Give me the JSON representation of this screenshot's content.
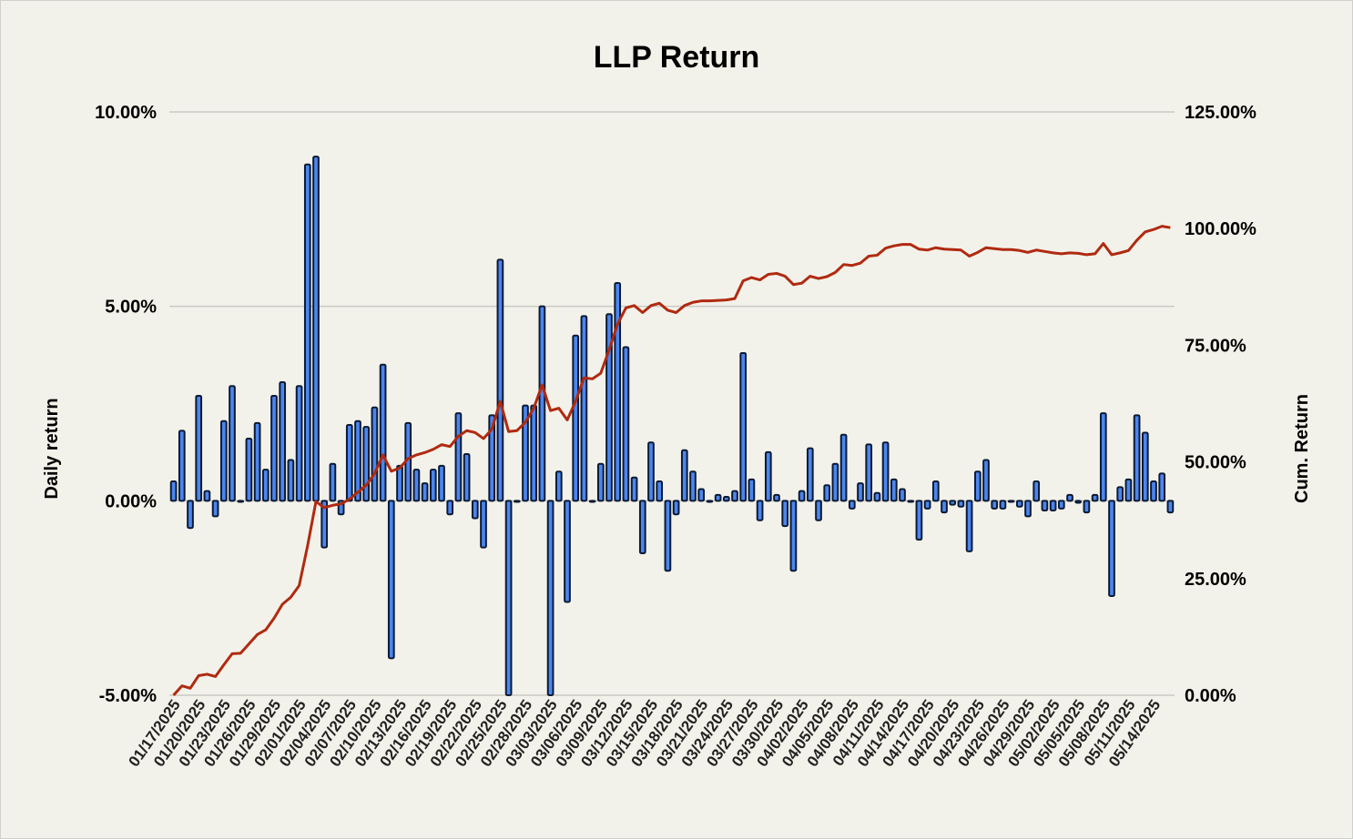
{
  "chart_data": {
    "type": "bar+line",
    "title": "LLP Return",
    "ylabel": "Daily return",
    "y2label": "Cum. Return",
    "ylim": [
      -5,
      10
    ],
    "y2lim": [
      0,
      125
    ],
    "y_ticks": [
      {
        "value": 10,
        "label": "10.00%"
      },
      {
        "value": 5,
        "label": "5.00%"
      },
      {
        "value": 0,
        "label": "0.00%"
      },
      {
        "value": -5,
        "label": "-5.00%"
      }
    ],
    "y2_ticks": [
      {
        "value": 125,
        "label": "125.00%"
      },
      {
        "value": 100,
        "label": "100.00%"
      },
      {
        "value": 75,
        "label": "75.00%"
      },
      {
        "value": 50,
        "label": "50.00%"
      },
      {
        "value": 25,
        "label": "25.00%"
      },
      {
        "value": 0,
        "label": "0.00%"
      }
    ],
    "grid": true,
    "x_tick_labels": [
      "01/17/2025",
      "01/20/2025",
      "01/23/2025",
      "01/26/2025",
      "01/29/2025",
      "02/01/2025",
      "02/04/2025",
      "02/07/2025",
      "02/10/2025",
      "02/13/2025",
      "02/16/2025",
      "02/19/2025",
      "02/22/2025",
      "02/25/2025",
      "02/28/2025",
      "03/03/2025",
      "03/06/2025",
      "03/09/2025",
      "03/12/2025",
      "03/15/2025",
      "03/18/2025",
      "03/21/2025",
      "03/24/2025",
      "03/27/2025",
      "03/30/2025",
      "04/02/2025",
      "04/05/2025",
      "04/08/2025",
      "04/11/2025",
      "04/14/2025",
      "04/17/2025",
      "04/20/2025",
      "04/23/2025",
      "04/26/2025",
      "04/29/2025",
      "05/02/2025",
      "05/05/2025",
      "05/08/2025",
      "05/11/2025",
      "05/14/2025"
    ],
    "start_date": "01/17/2025",
    "series": [
      {
        "name": "Daily return",
        "kind": "bar",
        "axis": "left",
        "values": [
          0.5,
          1.8,
          -0.7,
          2.7,
          0.25,
          -0.4,
          2.05,
          2.95,
          0,
          1.6,
          2.0,
          0.8,
          2.7,
          3.05,
          1.05,
          2.95,
          8.65,
          8.85,
          -1.2,
          0.95,
          -0.35,
          1.95,
          2.05,
          1.9,
          2.4,
          3.5,
          -4.05,
          0.9,
          2.0,
          0.8,
          0.45,
          0.8,
          0.9,
          -0.35,
          2.25,
          1.2,
          -0.45,
          -1.2,
          2.2,
          6.2,
          -5.2,
          0,
          2.45,
          2.45,
          5.0,
          -5.2,
          0.75,
          -2.6,
          4.25,
          4.75,
          0,
          0.95,
          4.8,
          5.6,
          3.95,
          0.6,
          -1.35,
          1.5,
          0.5,
          -1.8,
          -0.35,
          1.3,
          0.75,
          0.3,
          0,
          0.15,
          0.1,
          0.25,
          3.8,
          0.55,
          -0.5,
          1.25,
          0.15,
          -0.65,
          -1.8,
          0.25,
          1.35,
          -0.5,
          0.4,
          0.95,
          1.7,
          -0.2,
          0.45,
          1.45,
          0.2,
          1.5,
          0.55,
          0.3,
          0,
          -1.0,
          -0.2,
          0.5,
          -0.3,
          -0.1,
          -0.15,
          -1.3,
          0.75,
          1.05,
          -0.2,
          -0.2,
          0,
          -0.15,
          -0.4,
          0.5,
          -0.25,
          -0.25,
          -0.2,
          0.15,
          -0.05,
          -0.3,
          0.15,
          2.25,
          -2.45,
          0.35,
          0.55,
          2.2,
          1.75,
          0.5,
          0.7,
          -0.3
        ]
      },
      {
        "name": "Cum. Return",
        "kind": "line",
        "axis": "right",
        "values": [
          0,
          2,
          1.5,
          4.2,
          4.5,
          4,
          6.5,
          8.9,
          9,
          11,
          13,
          14,
          16.5,
          19.5,
          21,
          23.5,
          32,
          41.5,
          40.2,
          40.7,
          41,
          42,
          43.5,
          45,
          47.5,
          51.5,
          48,
          48.7,
          50.7,
          51.5,
          52,
          52.7,
          53.7,
          53.3,
          55.5,
          56.7,
          56.3,
          55,
          57,
          63,
          56.5,
          56.7,
          58.5,
          61.5,
          66.5,
          61,
          61.5,
          59,
          63,
          68,
          67.8,
          69,
          74,
          79.5,
          83,
          83.5,
          82,
          83.5,
          84,
          82.5,
          82,
          83.5,
          84.2,
          84.5,
          84.5,
          84.6,
          84.7,
          85,
          88.8,
          89.5,
          89,
          90.2,
          90.4,
          89.8,
          88,
          88.3,
          89.8,
          89.3,
          89.7,
          90.6,
          92.3,
          92.1,
          92.6,
          94.1,
          94.3,
          95.8,
          96.3,
          96.6,
          96.6,
          95.6,
          95.4,
          95.9,
          95.6,
          95.5,
          95.4,
          94.1,
          94.9,
          95.9,
          95.7,
          95.5,
          95.5,
          95.3,
          94.9,
          95.4,
          95.1,
          94.8,
          94.6,
          94.8,
          94.7,
          94.4,
          94.6,
          96.8,
          94.4,
          94.8,
          95.3,
          97.5,
          99.3,
          99.8,
          100.5,
          100.2
        ]
      }
    ]
  }
}
